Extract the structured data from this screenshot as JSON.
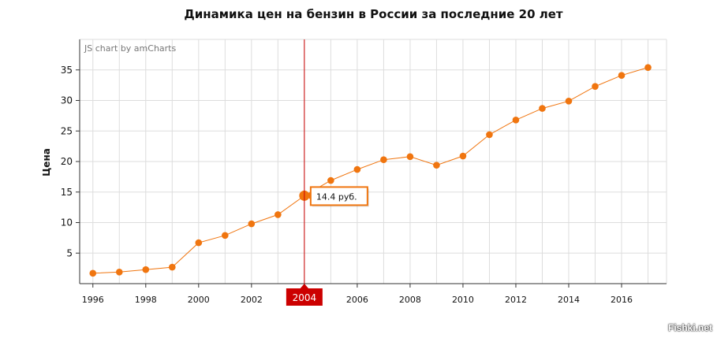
{
  "chart_data": {
    "type": "line",
    "title": "Динамика цен на бензин в России за последние 20 лет",
    "credit": "JS chart by amCharts",
    "xlabel": "",
    "ylabel": "Цена",
    "x": [
      1996,
      1997,
      1998,
      1999,
      2000,
      2001,
      2002,
      2003,
      2004,
      2005,
      2006,
      2007,
      2008,
      2009,
      2010,
      2011,
      2012,
      2013,
      2014,
      2015,
      2016,
      2017
    ],
    "values": [
      1.7,
      1.9,
      2.3,
      2.7,
      6.7,
      7.9,
      9.8,
      11.3,
      14.4,
      16.9,
      18.7,
      20.3,
      20.8,
      19.4,
      20.9,
      24.4,
      26.8,
      28.7,
      29.9,
      32.3,
      34.1,
      35.4
    ],
    "xlim": [
      1995.5,
      2017.7
    ],
    "ylim": [
      0,
      40
    ],
    "x_ticks": [
      1996,
      1998,
      2000,
      2002,
      2004,
      2006,
      2008,
      2010,
      2012,
      2014,
      2016
    ],
    "y_ticks": [
      5,
      10,
      15,
      20,
      25,
      30,
      35
    ],
    "line_color": "#f0750f",
    "cursor_color": "#cc0000",
    "grid": true,
    "cursor": {
      "x": 2004,
      "x_label": "2004",
      "tooltip": "14.4 руб."
    }
  },
  "watermark": "Fishki.net"
}
